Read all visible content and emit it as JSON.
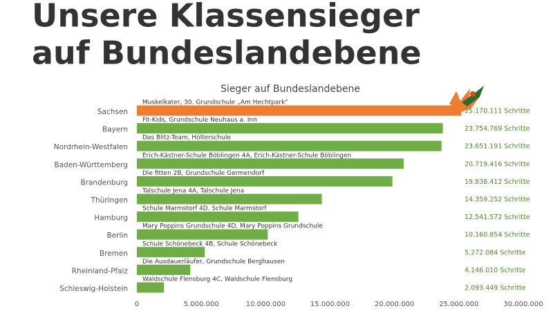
{
  "header": {
    "title_lines": [
      "Unsere Klassensieger",
      "auf Bundeslandebene"
    ]
  },
  "chart_data": {
    "type": "hbar",
    "title": "Sieger auf Bundeslandebene",
    "categories": [
      "Sachsen",
      "Bayern",
      "Nordrhein-Westfalen",
      "Baden-Württemberg",
      "Brandenburg",
      "Thüringen",
      "Hamburg",
      "Berlin",
      "Bremen",
      "Rheinland-Pfalz",
      "Schleswig-Holstein"
    ],
    "values": [
      25170111,
      23754769,
      23651191,
      20719416,
      19838412,
      14359252,
      12541572,
      10160854,
      5272084,
      4146010,
      2093449
    ],
    "value_labels": [
      "25.170.111 Schritte",
      "23.754.769 Schritte",
      "23.651.191 Schritte",
      "20.719.416 Schritte",
      "19.838.412 Schritte",
      "14.359.252 Schritte",
      "12.541.572 Schritte",
      "10.160.854 Schritte",
      "5.272.084 Schritte",
      "4.146.010 Schritte",
      "2.093.449 Schritte"
    ],
    "bar_labels": [
      "Muskelkater, 30. Grundschule „Am Hechtpark\"",
      "Fit-Kids, Grundschule Neuhaus a. Inn",
      "Das Blitz-Team, Hölterschule",
      "Erich-Kästner-Schule Böblingen 4A, Erich-Kästner-Schule Böblingen",
      "Die fitten 2B, Grundschule Germendorf",
      "Talschule Jena 4A, Talschule Jena",
      "Schule Marmstorf 4D. Schule Marmstorf",
      "Mary Poppins Grundschule 4D, Mary Poppins Grundschule",
      "Schule Schönebeck 4B, Schule Schönebeck",
      "Die Ausdauerläufer, Grundschule Berghausen",
      "Waldschule Flensburg 4C, Waldschule Flensburg"
    ],
    "colors": [
      "#ed7d31",
      "#70ad47",
      "#70ad47",
      "#70ad47",
      "#70ad47",
      "#70ad47",
      "#70ad47",
      "#70ad47",
      "#70ad47",
      "#70ad47",
      "#70ad47"
    ],
    "xlim": [
      0,
      30000000
    ],
    "xticks": [
      0,
      {
        "value": 5000000,
        "label": "5.000.000"
      },
      {
        "value": 10000000,
        "label": "10.000.000"
      },
      {
        "value": 15000000,
        "label": "15.000.000"
      },
      {
        "value": 20000000,
        "label": "20.000.000"
      },
      {
        "value": 25000000,
        "label": "25.000.000"
      },
      {
        "value": 30000000,
        "label": "30.000.000"
      }
    ]
  }
}
